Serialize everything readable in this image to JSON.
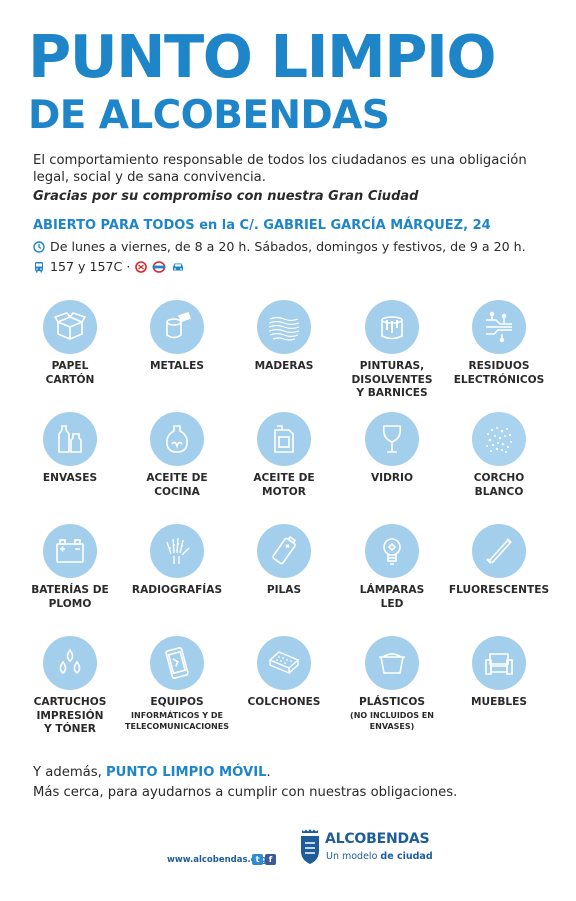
{
  "header": {
    "title_line1": "PUNTO LIMPIO",
    "title_line2": "DE ALCOBENDAS"
  },
  "intro": {
    "text": "El comportamiento responsable de todos los ciudadanos es una obligación legal, social y de sana convivencia.",
    "thanks": "Gracias por su compromiso con nuestra Gran Ciudad"
  },
  "info": {
    "open": "ABIERTO PARA TODOS en la C/. GABRIEL GARCÍA MÁRQUEZ, 24",
    "schedule": "De lunes a viernes, de 8 a 20 h. Sábados, domingos y festivos, de 9 a 20 h.",
    "bus": "157 y 157C ·",
    "icons": [
      "clock-icon",
      "bus-icon",
      "train-icon",
      "metro-icon",
      "car-icon"
    ]
  },
  "items": [
    {
      "label": "PAPEL\nCARTÓN",
      "icon": "box-icon"
    },
    {
      "label": "METALES",
      "icon": "can-icon"
    },
    {
      "label": "MADERAS",
      "icon": "wood-icon"
    },
    {
      "label": "PINTURAS,\nDISOLVENTES\nY BARNICES",
      "icon": "paint-bucket-icon"
    },
    {
      "label": "RESIDUOS\nELECTRÓNICOS",
      "icon": "circuit-icon"
    },
    {
      "label": "ENVASES",
      "icon": "bottles-icon"
    },
    {
      "label": "ACEITE DE\nCOCINA",
      "icon": "oil-jar-icon"
    },
    {
      "label": "ACEITE DE\nMOTOR",
      "icon": "motor-oil-icon"
    },
    {
      "label": "VIDRIO",
      "icon": "glass-icon"
    },
    {
      "label": "CORCHO\nBLANCO",
      "icon": "cork-icon"
    },
    {
      "label": "BATERÍAS DE\nPLOMO",
      "icon": "car-battery-icon"
    },
    {
      "label": "RADIOGRAFÍAS",
      "icon": "xray-hand-icon"
    },
    {
      "label": "PILAS",
      "icon": "battery-icon"
    },
    {
      "label": "LÁMPARAS\nLED",
      "icon": "lamp-icon"
    },
    {
      "label": "FLUORESCENTES",
      "icon": "fluorescent-tube-icon"
    },
    {
      "label": "CARTUCHOS\nIMPRESIÓN\nY TÓNER",
      "icon": "ink-drops-icon"
    },
    {
      "label": "EQUIPOS",
      "sublabel": "INFORMÁTICOS Y DE\nTELECOMUNICACIONES",
      "icon": "phone-icon"
    },
    {
      "label": "COLCHONES",
      "icon": "mattress-icon"
    },
    {
      "label": "PLÁSTICOS",
      "sublabel": "(NO INCLUIDOS EN\nENVASES)",
      "icon": "plastic-tub-icon"
    },
    {
      "label": "MUEBLES",
      "icon": "armchair-icon"
    }
  ],
  "footer": {
    "extra_prefix": "Y además, ",
    "extra_highlight": "PUNTO LIMPIO MÓVIL",
    "extra_suffix": ".",
    "extra_line2": "Más cerca, para ayudarnos a cumplir con nuestras obligaciones.",
    "url": "www.alcobendas.org",
    "logo_name": "ALCOBENDAS",
    "logo_tag_prefix": "Un modelo ",
    "logo_tag_bold": "de ciudad"
  },
  "colors": {
    "accent": "#1e86c8",
    "circle": "#a3cfec",
    "icon_stroke": "#ffffff",
    "logo": "#1e5d9a"
  }
}
